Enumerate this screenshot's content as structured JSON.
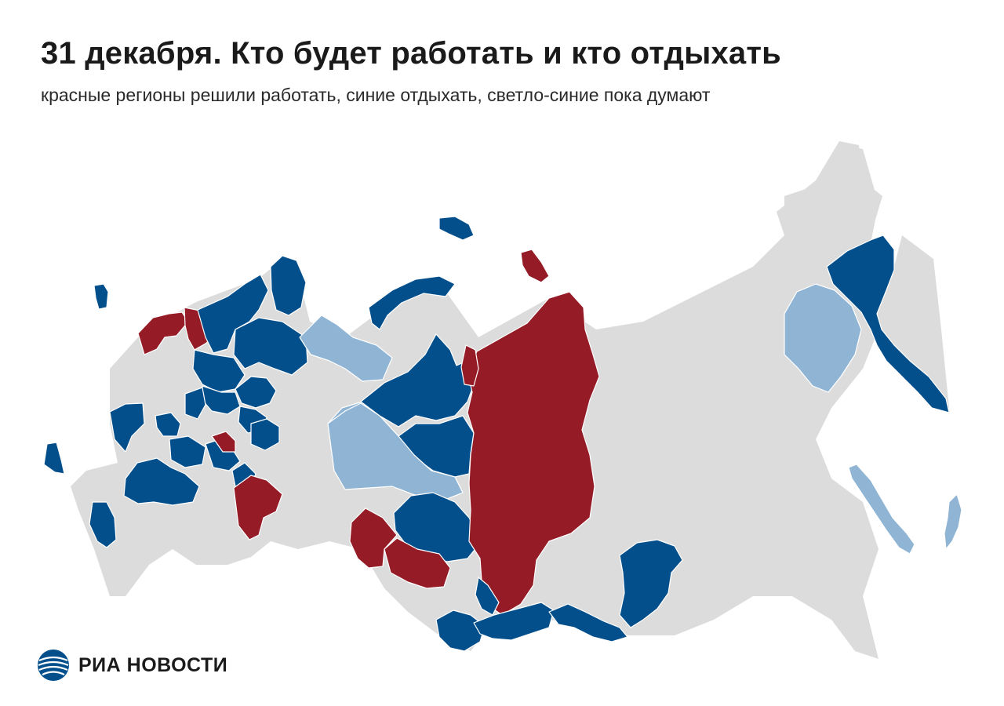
{
  "header": {
    "title": "31 декабря. Кто будет работать и кто отдыхать",
    "subtitle": "красные регионы решили работать, синие отдыхать, светло-синие пока думают"
  },
  "brand": {
    "name": "РИА НОВОСТИ",
    "icon": "ria-globe-icon"
  },
  "colors": {
    "work": "#951b26",
    "rest": "#034f8c",
    "undecided": "#8fb4d4",
    "no_data": "#dcdcdc",
    "border": "#ffffff"
  },
  "legend_status": {
    "work": "работать",
    "rest": "отдыхать",
    "undecided": "пока думают"
  },
  "regions": [
    {
      "id": "kaliningrad",
      "status": "rest"
    },
    {
      "id": "leningrad",
      "status": "work"
    },
    {
      "id": "st-petersburg",
      "status": "work"
    },
    {
      "id": "novaya-zemlya",
      "status": "work"
    },
    {
      "id": "karelia",
      "status": "rest"
    },
    {
      "id": "murmansk",
      "status": "rest"
    },
    {
      "id": "arkhangelsk",
      "status": "rest"
    },
    {
      "id": "vologda",
      "status": "rest"
    },
    {
      "id": "kostroma",
      "status": "rest"
    },
    {
      "id": "tver",
      "status": "rest"
    },
    {
      "id": "yaroslavl",
      "status": "rest"
    },
    {
      "id": "ivanovo",
      "status": "rest"
    },
    {
      "id": "kaluga",
      "status": "rest"
    },
    {
      "id": "tula",
      "status": "rest"
    },
    {
      "id": "ryazan",
      "status": "rest"
    },
    {
      "id": "tambov",
      "status": "rest"
    },
    {
      "id": "penza",
      "status": "rest"
    },
    {
      "id": "voronezh",
      "status": "rest"
    },
    {
      "id": "volgograd",
      "status": "rest"
    },
    {
      "id": "stavropol",
      "status": "rest"
    },
    {
      "id": "nizhny-novgorod",
      "status": "rest"
    },
    {
      "id": "mordovia",
      "status": "work"
    },
    {
      "id": "saratov",
      "status": "work"
    },
    {
      "id": "nenets",
      "status": "undecided"
    },
    {
      "id": "komi",
      "status": "undecided"
    },
    {
      "id": "franz-josef-land",
      "status": "rest"
    },
    {
      "id": "novaya-zemlya-north",
      "status": "rest"
    },
    {
      "id": "yamalo-nenets",
      "status": "rest"
    },
    {
      "id": "khanty-mansi",
      "status": "rest"
    },
    {
      "id": "tyumen",
      "status": "undecided"
    },
    {
      "id": "novosibirsk",
      "status": "rest"
    },
    {
      "id": "krasnoyarsk",
      "status": "work"
    },
    {
      "id": "taymyr-islands",
      "status": "work"
    },
    {
      "id": "chelyabinsk",
      "status": "work"
    },
    {
      "id": "omsk",
      "status": "work"
    },
    {
      "id": "khakassia",
      "status": "rest"
    },
    {
      "id": "altai-republic",
      "status": "rest"
    },
    {
      "id": "tuva",
      "status": "rest"
    },
    {
      "id": "irkutsk",
      "status": "rest"
    },
    {
      "id": "buryatia",
      "status": "rest"
    },
    {
      "id": "magadan",
      "status": "undecided"
    },
    {
      "id": "kamchatka",
      "status": "rest"
    },
    {
      "id": "sakhalin",
      "status": "undecided"
    },
    {
      "id": "kurils",
      "status": "undecided"
    }
  ]
}
